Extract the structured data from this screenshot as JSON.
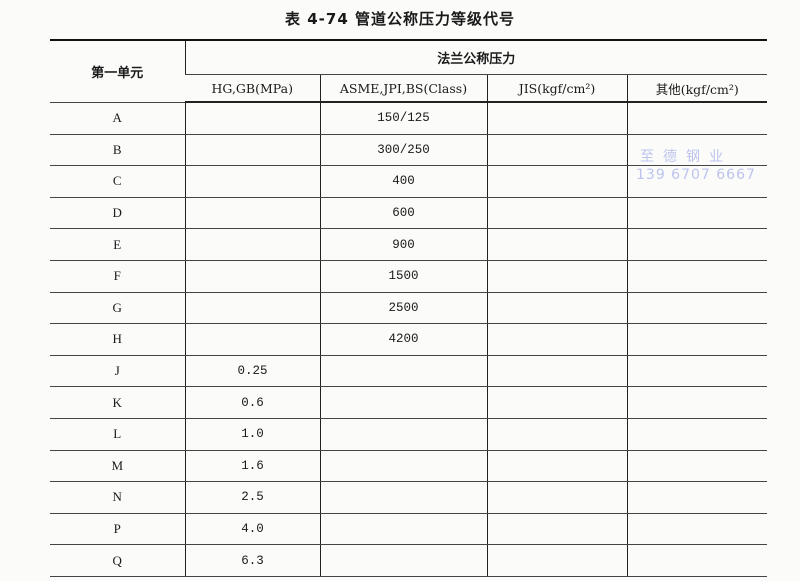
{
  "title": "表 4-74   管道公称压力等级代号",
  "header": {
    "first_col": "第一单元",
    "group": "法兰公称压力",
    "columns": [
      "HG,GB(MPa)",
      "ASME,JPI,BS(Class)",
      "JIS(kgf/cm²)",
      "其他(kgf/cm²)"
    ]
  },
  "rows": [
    {
      "code": "A",
      "hg": "",
      "asme": "150/125",
      "jis": "",
      "other": ""
    },
    {
      "code": "B",
      "hg": "",
      "asme": "300/250",
      "jis": "",
      "other": ""
    },
    {
      "code": "C",
      "hg": "",
      "asme": "400",
      "jis": "",
      "other": ""
    },
    {
      "code": "D",
      "hg": "",
      "asme": "600",
      "jis": "",
      "other": ""
    },
    {
      "code": "E",
      "hg": "",
      "asme": "900",
      "jis": "",
      "other": ""
    },
    {
      "code": "F",
      "hg": "",
      "asme": "1500",
      "jis": "",
      "other": ""
    },
    {
      "code": "G",
      "hg": "",
      "asme": "2500",
      "jis": "",
      "other": ""
    },
    {
      "code": "H",
      "hg": "",
      "asme": "4200",
      "jis": "",
      "other": ""
    },
    {
      "code": "J",
      "hg": "0.25",
      "asme": "",
      "jis": "",
      "other": ""
    },
    {
      "code": "K",
      "hg": "0.6",
      "asme": "",
      "jis": "",
      "other": ""
    },
    {
      "code": "L",
      "hg": "1.0",
      "asme": "",
      "jis": "",
      "other": ""
    },
    {
      "code": "M",
      "hg": "1.6",
      "asme": "",
      "jis": "",
      "other": ""
    },
    {
      "code": "N",
      "hg": "2.5",
      "asme": "",
      "jis": "",
      "other": ""
    },
    {
      "code": "P",
      "hg": "4.0",
      "asme": "",
      "jis": "",
      "other": ""
    },
    {
      "code": "Q",
      "hg": "6.3",
      "asme": "",
      "jis": "",
      "other": ""
    }
  ],
  "watermark": {
    "name": "至德钢业",
    "phone": "139 6707 6667",
    "color": "#bcc4ee"
  }
}
